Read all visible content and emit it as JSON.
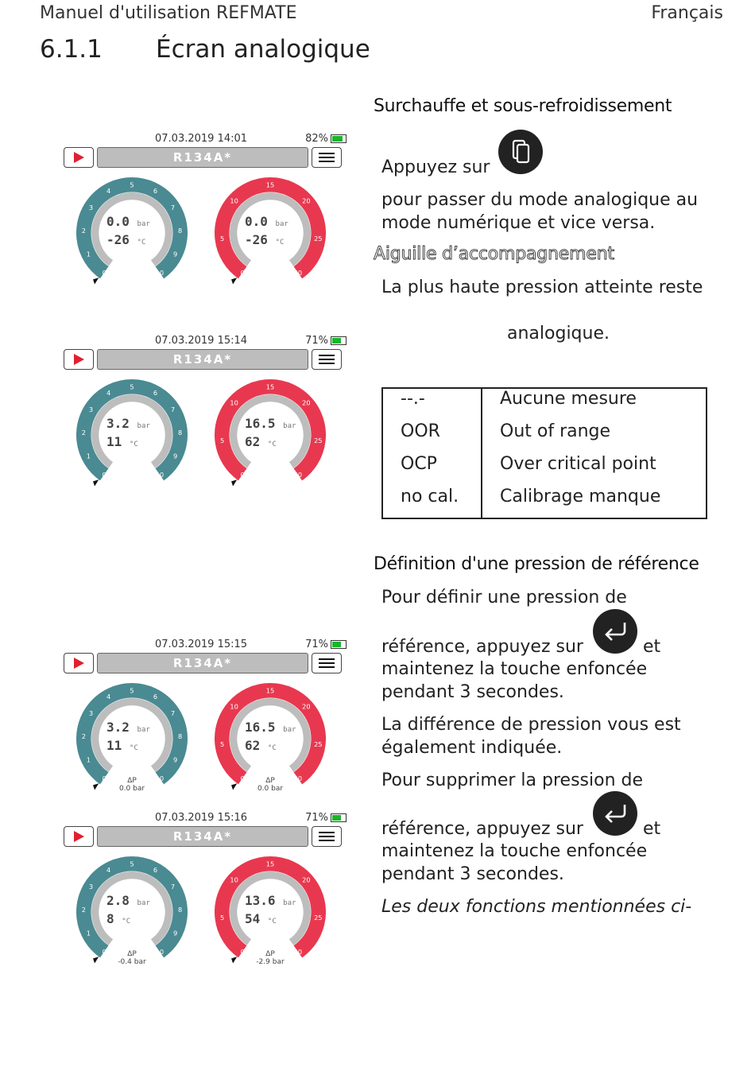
{
  "header": {
    "left": "Manuel d'utilisation REFMATE",
    "right": "Français"
  },
  "section": {
    "number": "6.1.1",
    "title": "Écran analogique"
  },
  "right_column": {
    "h_superheat": "Surchauffe et sous-refroidissement",
    "press_label": "Appuyez sur",
    "switch_text_1": "pour passer du mode analogique au",
    "switch_text_2": "mode numérique et vice versa.",
    "h_needle": "Aiguille d’accompagnement",
    "needle_text_1": "La plus haute pression atteinte reste",
    "needle_text_2": "analogique.",
    "codes": [
      {
        "code": "--.-",
        "meaning": "Aucune mesure"
      },
      {
        "code": "OOR",
        "meaning": "Out of range"
      },
      {
        "code": "OCP",
        "meaning": "Over critical point"
      },
      {
        "code": "no cal.",
        "meaning": "Calibrage manque"
      }
    ],
    "h_reference": "Définition d'une pression de référence",
    "ref_set_1": "Pour définir une pression de",
    "ref_set_2": "référence, appuyez sur",
    "ref_et": "et",
    "ref_set_3": "maintenez la touche enfoncée",
    "ref_set_4": "pendant 3 secondes.",
    "diff_1": "La différence de pression vous est",
    "diff_2": "également indiquée.",
    "ref_del_1": "Pour supprimer la pression de",
    "ref_del_2": "référence, appuyez sur",
    "ref_et2": "et",
    "ref_del_3": "maintenez la touche enfoncée",
    "ref_del_4": "pendant 3 secondes.",
    "italic_note": "Les deux fonctions mentionnées ci-"
  },
  "colors": {
    "low_gauge": "#4a8a92",
    "high_gauge": "#e8384f",
    "battery": "#1ab52a"
  },
  "screens": [
    {
      "datetime": "07.03.2019  14:01",
      "battery": "82%",
      "battery_level": 0.82,
      "refrigerant": "R134A*",
      "low": {
        "pressure": "0.0",
        "temp": "-26",
        "pressure_unit": "bar",
        "temp_unit": "°C",
        "delta_label": "",
        "delta": ""
      },
      "high": {
        "pressure": "0.0",
        "temp": "-26",
        "pressure_unit": "bar",
        "temp_unit": "°C",
        "delta_label": "",
        "delta": ""
      }
    },
    {
      "datetime": "07.03.2019  15:14",
      "battery": "71%",
      "battery_level": 0.71,
      "refrigerant": "R134A*",
      "low": {
        "pressure": "3.2",
        "temp": "11",
        "pressure_unit": "bar",
        "temp_unit": "°C",
        "delta_label": "",
        "delta": ""
      },
      "high": {
        "pressure": "16.5",
        "temp": "62",
        "pressure_unit": "bar",
        "temp_unit": "°C",
        "delta_label": "",
        "delta": ""
      }
    },
    {
      "datetime": "07.03.2019  15:15",
      "battery": "71%",
      "battery_level": 0.71,
      "refrigerant": "R134A*",
      "low": {
        "pressure": "3.2",
        "temp": "11",
        "pressure_unit": "bar",
        "temp_unit": "°C",
        "delta_label": "ΔP",
        "delta": "0.0  bar"
      },
      "high": {
        "pressure": "16.5",
        "temp": "62",
        "pressure_unit": "bar",
        "temp_unit": "°C",
        "delta_label": "ΔP",
        "delta": "0.0  bar"
      }
    },
    {
      "datetime": "07.03.2019  15:16",
      "battery": "71%",
      "battery_level": 0.71,
      "refrigerant": "R134A*",
      "low": {
        "pressure": "2.8",
        "temp": "8",
        "pressure_unit": "bar",
        "temp_unit": "°C",
        "delta_label": "ΔP",
        "delta": "-0.4  bar"
      },
      "high": {
        "pressure": "13.6",
        "temp": "54",
        "pressure_unit": "bar",
        "temp_unit": "°C",
        "delta_label": "ΔP",
        "delta": "-2.9  bar"
      }
    }
  ]
}
